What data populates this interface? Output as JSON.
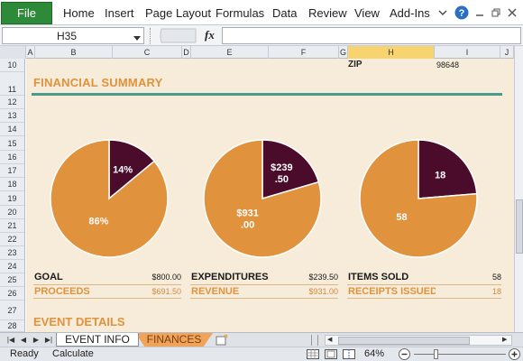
{
  "ribbon": {
    "file_label": "File",
    "tabs": [
      "Home",
      "Insert",
      "Page Layout",
      "Formulas",
      "Data",
      "Review",
      "View",
      "Add-Ins"
    ]
  },
  "formula_bar": {
    "name_box": "H35",
    "fx_label": "fx",
    "formula": ""
  },
  "columns": [
    "A",
    "B",
    "C",
    "D",
    "E",
    "F",
    "G",
    "H",
    "I",
    "J"
  ],
  "rows": [
    "10",
    "11",
    "12",
    "13",
    "14",
    "15",
    "16",
    "17",
    "18",
    "19",
    "20",
    "21",
    "22",
    "23",
    "24",
    "25",
    "26",
    "27",
    "28"
  ],
  "sheet": {
    "zip_label": "ZIP",
    "zip_value": "98648",
    "section_title": "FINANCIAL SUMMARY",
    "event_title": "EVENT DETAILS"
  },
  "summary": {
    "goal_label": "GOAL",
    "goal_value": "$800.00",
    "proceeds_label": "PROCEEDS",
    "proceeds_value": "$691.50",
    "expenditures_label": "EXPENDITURES",
    "expenditures_value": "$239.50",
    "revenue_label": "REVENUE",
    "revenue_value": "$931.00",
    "items_label": "ITEMS SOLD",
    "items_value": "58",
    "receipts_label": "RECEIPTS ISSUED",
    "receipts_value": "18"
  },
  "chart_data": [
    {
      "type": "pie",
      "slices": [
        {
          "label": "14%",
          "value": 14,
          "color": "#4a0c2a"
        },
        {
          "label": "86%",
          "value": 86,
          "color": "#e0923c"
        }
      ]
    },
    {
      "type": "pie",
      "slices": [
        {
          "label": "$239 .50",
          "value": 239.5,
          "color": "#4a0c2a"
        },
        {
          "label": "$931 .00",
          "value": 931.0,
          "color": "#e0923c"
        }
      ]
    },
    {
      "type": "pie",
      "slices": [
        {
          "label": "18",
          "value": 18,
          "color": "#4a0c2a"
        },
        {
          "label": "58",
          "value": 58,
          "color": "#e0923c"
        }
      ]
    }
  ],
  "sheet_tabs": [
    "EVENT INFO",
    "FINANCES"
  ],
  "status": {
    "ready": "Ready",
    "calculate": "Calculate",
    "zoom": "64%"
  },
  "colors": {
    "accent": "#e0923c",
    "dark": "#4a0c2a",
    "teal_rule": "#4a9a8a",
    "sheet_bg": "#f6ecd9"
  }
}
